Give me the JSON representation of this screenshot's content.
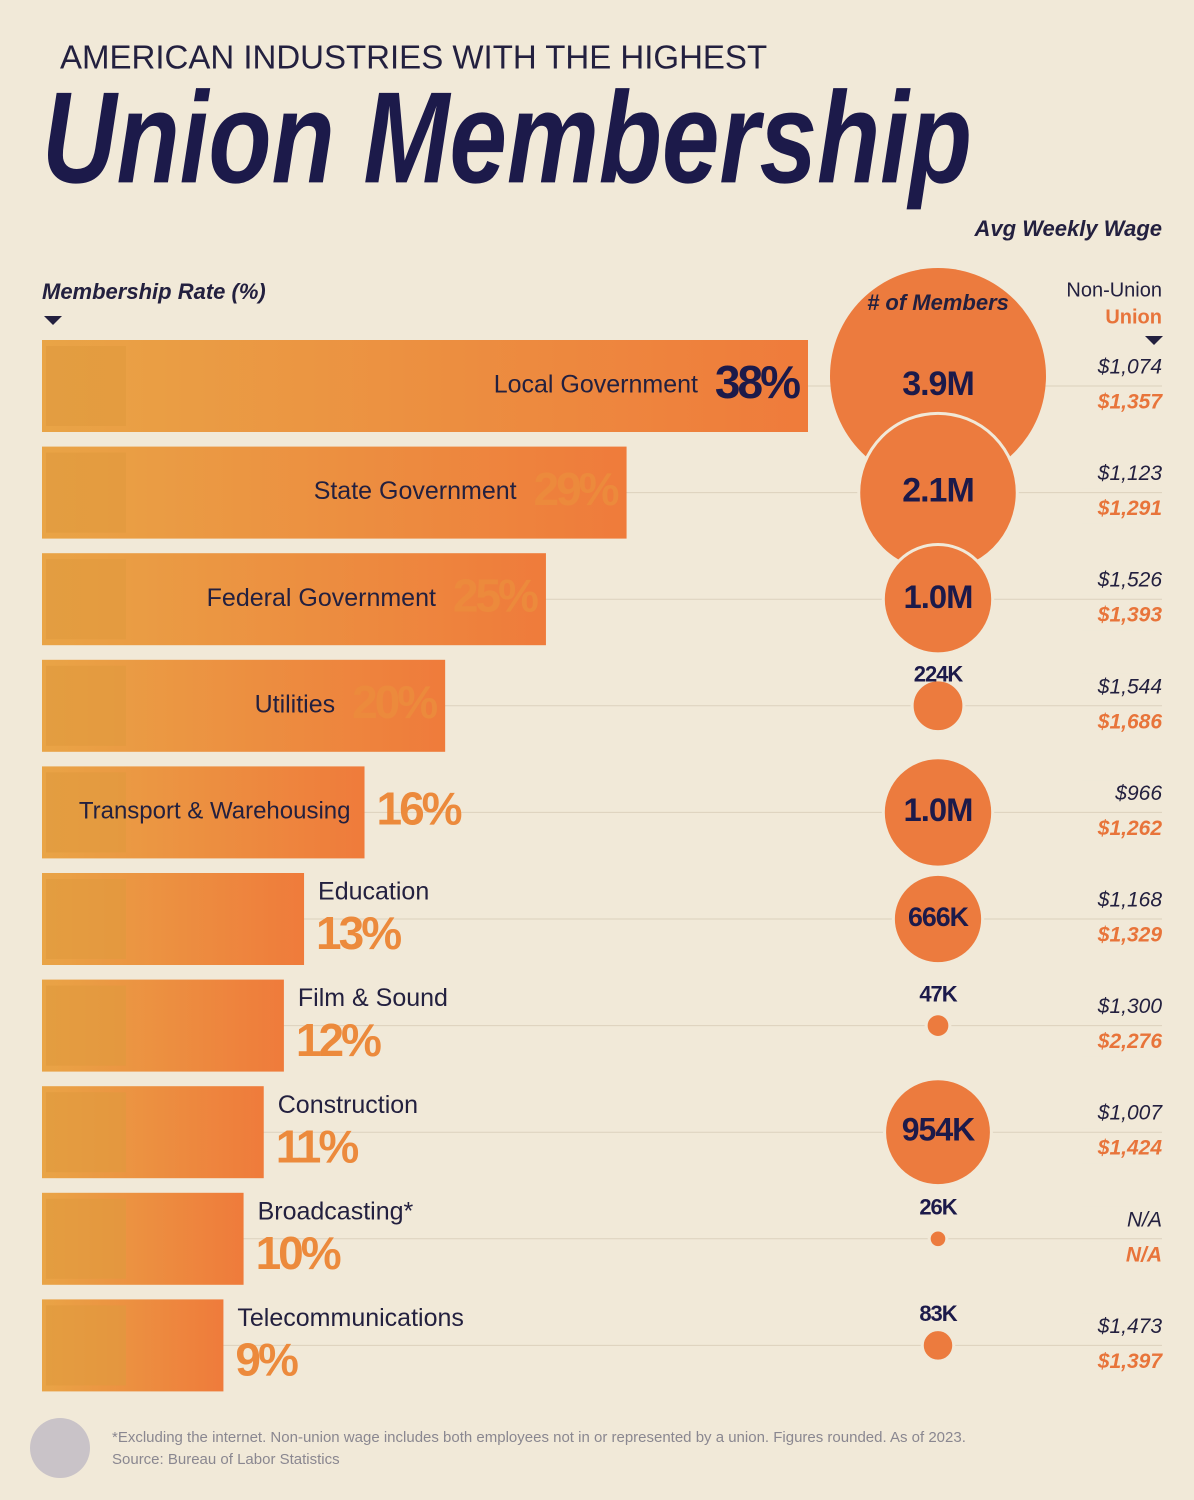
{
  "header": {
    "kicker": "AMERICAN INDUSTRIES WITH THE HIGHEST",
    "title": "Union Membership"
  },
  "chart_data": [
    {
      "type": "bar",
      "axis_label": "Membership Rate (%)",
      "categories": [
        "Local Government",
        "State Government",
        "Federal Government",
        "Utilities",
        "Transport & Warehousing",
        "Education",
        "Film & Sound",
        "Construction",
        "Broadcasting*",
        "Telecommunications"
      ],
      "values": [
        38,
        29,
        25,
        20,
        16,
        13,
        12,
        11,
        10,
        9
      ],
      "value_labels": [
        "38%",
        "29%",
        "25%",
        "20%",
        "16%",
        "13%",
        "12%",
        "11%",
        "10%",
        "9%"
      ],
      "color": "#ec8a3c"
    },
    {
      "type": "bubble",
      "title": "# of Members",
      "values": [
        3900000,
        2100000,
        1000000,
        224000,
        1000000,
        666000,
        47000,
        954000,
        26000,
        83000
      ],
      "value_labels": [
        "3.9M",
        "2.1M",
        "1.0M",
        "224K",
        "1.0M",
        "666K",
        "47K",
        "954K",
        "26K",
        "83K"
      ],
      "color": "#ec7b3e"
    },
    {
      "type": "table",
      "title": "Avg Weekly Wage",
      "series": [
        {
          "name": "Non-Union",
          "color": "#23203f",
          "values": [
            1074,
            1123,
            1526,
            1544,
            966,
            1168,
            1300,
            1007,
            null,
            1473
          ],
          "value_labels": [
            "$1,074",
            "$1,123",
            "$1,526",
            "$1,544",
            "$966",
            "$1,168",
            "$1,300",
            "$1,007",
            "N/A",
            "$1,473"
          ]
        },
        {
          "name": "Union",
          "color": "#e8743a",
          "values": [
            1357,
            1291,
            1393,
            1686,
            1262,
            1329,
            2276,
            1424,
            null,
            1397
          ],
          "value_labels": [
            "$1,357",
            "$1,291",
            "$1,393",
            "$1,686",
            "$1,262",
            "$1,329",
            "$2,276",
            "$1,424",
            "N/A",
            "$1,397"
          ]
        }
      ]
    }
  ],
  "footer": {
    "note": "*Excluding the internet. Non-union wage includes both employees not in or represented by a union. Figures rounded. As of 2023.",
    "source": "Source: Bureau of Labor Statistics"
  }
}
